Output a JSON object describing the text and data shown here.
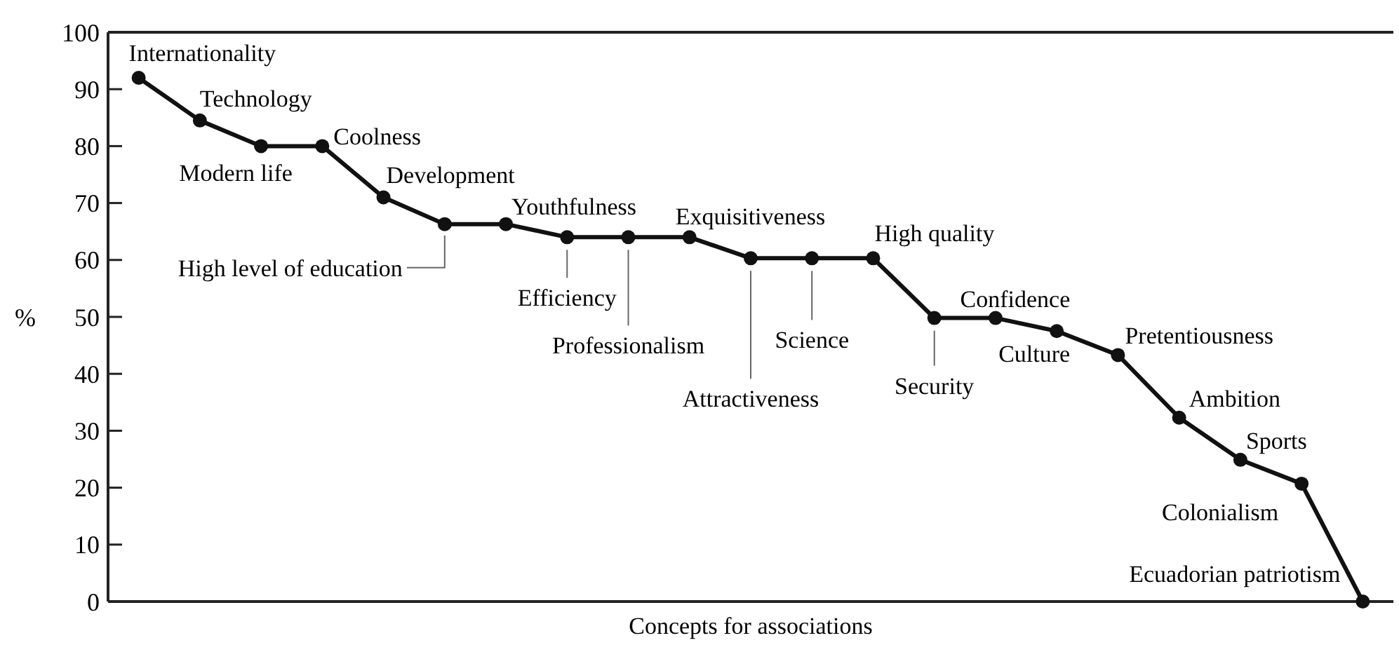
{
  "chart_data": {
    "type": "line",
    "xlabel": "Concepts for associations",
    "ylabel": "%",
    "categories": [
      null,
      null,
      null,
      null,
      null,
      null,
      null,
      null,
      null,
      null,
      null,
      null,
      null,
      null,
      null,
      null,
      null,
      null,
      null,
      null,
      null
    ],
    "annotations": [
      "Internationality",
      "Technology",
      "Modern life",
      "Coolness",
      "Development",
      "High level of education",
      "Youthfulness",
      "Efficiency",
      "Professionalism",
      "Exquisitiveness",
      "Attractiveness",
      "Science",
      "High quality",
      "Security",
      "Confidence",
      "Culture",
      "Pretentiousness",
      "Ambition",
      "Sports",
      "Colonialism",
      "Ecuadorian patriotism"
    ],
    "series": [
      {
        "color": "#111111",
        "values": [
          92,
          84.5,
          80,
          80,
          71,
          66.3,
          66.3,
          64,
          64,
          64,
          60.3,
          60.3,
          60.3,
          49.8,
          49.8,
          47.5,
          43.3,
          32.3,
          24.9,
          20.7,
          0
        ]
      }
    ],
    "ylim": [
      0,
      100
    ],
    "yticks": [
      0,
      10,
      20,
      30,
      40,
      50,
      60,
      70,
      80,
      90,
      100
    ],
    "tick_labels": "y",
    "grid": false,
    "marker": "circle",
    "line_style": "solid"
  }
}
